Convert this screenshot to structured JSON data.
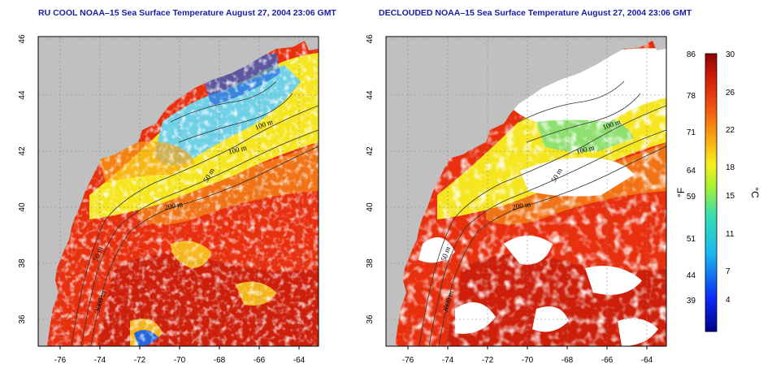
{
  "titles": {
    "left": "RU COOL NOAA–15 Sea Surface Temperature August 27, 2004 23:06 GMT",
    "right": "DECLOUDED NOAA–15 Sea Surface Temperature August 27, 2004 23:06 GMT"
  },
  "axes": {
    "x_ticks": [
      "-76",
      "-74",
      "-72",
      "-70",
      "-68",
      "-66",
      "-64"
    ],
    "y_ticks": [
      "46",
      "44",
      "42",
      "40",
      "38",
      "36"
    ]
  },
  "contour_labels": {
    "c100a": "100 m",
    "c100b": "100 m",
    "c50a": "50 m",
    "c200": "200 m",
    "c50b": "50 m",
    "c3000": "3000 m"
  },
  "colorbar": {
    "unit_f": "°F",
    "unit_c": "°C",
    "f_labels": [
      "86",
      "78",
      "71",
      "64",
      "59",
      "51",
      "44",
      "39"
    ],
    "c_labels": [
      "30",
      "26",
      "22",
      "18",
      "15",
      "11",
      "7",
      "4"
    ]
  },
  "colors": {
    "land": "#c0c0c0",
    "title": "#1a1aa8",
    "warm": "#e8300f",
    "hot": "#b8120a",
    "cool": "#6fd0e6",
    "cold": "#2266dd"
  }
}
